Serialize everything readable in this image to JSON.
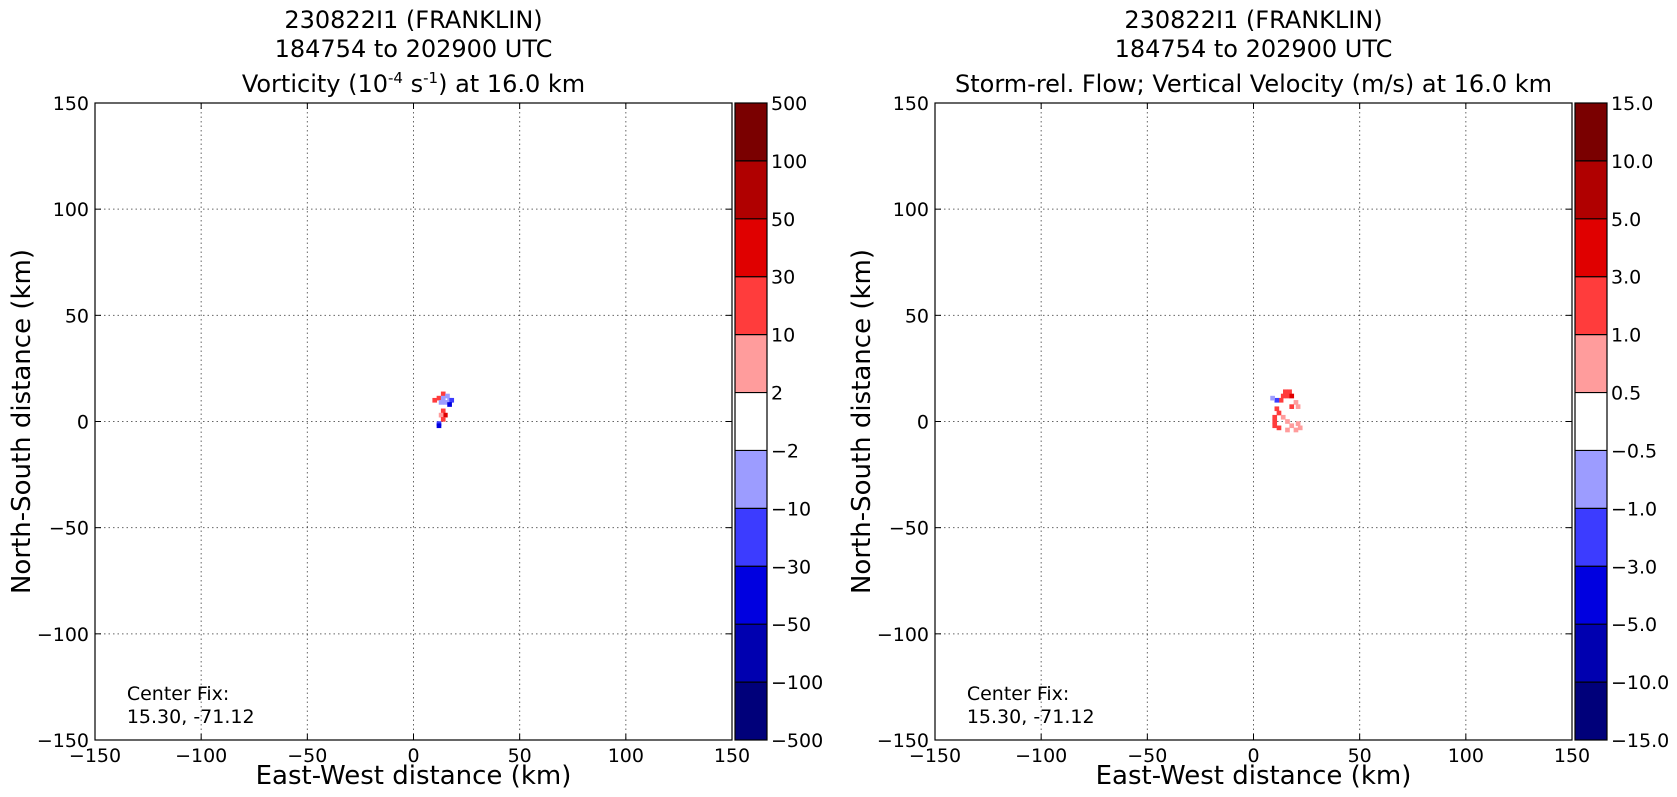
{
  "chart_data": [
    {
      "type": "heatmap",
      "title_lines": [
        "230822I1 (FRANKLIN)",
        "184754 to 202900 UTC"
      ],
      "title_line3": {
        "prefix": "Vorticity (10",
        "sup1": "-4",
        "middle": " s",
        "sup2": "-1",
        "suffix": ") at 16.0 km"
      },
      "xlabel": "East-West distance (km)",
      "ylabel": "North-South distance (km)",
      "xlim": [
        -150,
        150
      ],
      "ylim": [
        -150,
        150
      ],
      "xticks": [
        -150,
        -100,
        -50,
        0,
        50,
        100,
        150
      ],
      "yticks": [
        -150,
        -100,
        -50,
        0,
        50,
        100,
        150
      ],
      "grid": true,
      "colorbar": {
        "labels": [
          "500",
          "100",
          "50",
          "30",
          "10",
          "2",
          "−2",
          "−10",
          "−30",
          "−50",
          "−100",
          "−500"
        ],
        "colors": [
          "#7a0000",
          "#b00000",
          "#e00000",
          "#ff3c3c",
          "#ff9c9c",
          "#ffffff",
          "#9c9cff",
          "#3c3cff",
          "#0000e0",
          "#0000b0",
          "#00007a"
        ]
      },
      "annotation": [
        "Center Fix:",
        "15.30, -71.12"
      ],
      "cells": [
        {
          "x": 12,
          "y": 11,
          "c": "#ff3c3c"
        },
        {
          "x": 14,
          "y": 13,
          "c": "#ff3c3c"
        },
        {
          "x": 10,
          "y": 10,
          "c": "#ff3c3c"
        },
        {
          "x": 14,
          "y": 11,
          "c": "#9c9cff"
        },
        {
          "x": 16,
          "y": 12,
          "c": "#9c9cff"
        },
        {
          "x": 15,
          "y": 9,
          "c": "#9c9cff"
        },
        {
          "x": 13,
          "y": 9,
          "c": "#9c9cff"
        },
        {
          "x": 17,
          "y": 10,
          "c": "#9c9cff"
        },
        {
          "x": 18,
          "y": 10,
          "c": "#3c3cff"
        },
        {
          "x": 17,
          "y": 8,
          "c": "#0000e0"
        },
        {
          "x": 14,
          "y": 5,
          "c": "#ff3c3c"
        },
        {
          "x": 15,
          "y": 3,
          "c": "#e00000"
        },
        {
          "x": 13,
          "y": 3,
          "c": "#ff9c9c"
        },
        {
          "x": 14,
          "y": 1,
          "c": "#ff3c3c"
        },
        {
          "x": 12,
          "y": -1,
          "c": "#3c3cff"
        },
        {
          "x": 12,
          "y": -2,
          "c": "#0000e0"
        }
      ]
    },
    {
      "type": "heatmap",
      "title_lines": [
        "230822I1 (FRANKLIN)",
        "184754 to 202900 UTC"
      ],
      "title_line3": {
        "prefix": "Storm-rel. Flow; Vertical Velocity (m/s) at 16.0 km",
        "sup1": "",
        "middle": "",
        "sup2": "",
        "suffix": ""
      },
      "xlabel": "East-West distance (km)",
      "ylabel": "North-South distance (km)",
      "xlim": [
        -150,
        150
      ],
      "ylim": [
        -150,
        150
      ],
      "xticks": [
        -150,
        -100,
        -50,
        0,
        50,
        100,
        150
      ],
      "yticks": [
        -150,
        -100,
        -50,
        0,
        50,
        100,
        150
      ],
      "grid": true,
      "colorbar": {
        "labels": [
          "15.0",
          "10.0",
          "5.0",
          "3.0",
          "1.0",
          "0.5",
          "−0.5",
          "−1.0",
          "−3.0",
          "−5.0",
          "−10.0",
          "−15.0"
        ],
        "colors": [
          "#7a0000",
          "#b00000",
          "#e00000",
          "#ff3c3c",
          "#ff9c9c",
          "#ffffff",
          "#9c9cff",
          "#3c3cff",
          "#0000e0",
          "#0000b0",
          "#00007a"
        ]
      },
      "annotation": [
        "Center Fix:",
        "15.30, -71.12"
      ],
      "cells": [
        {
          "x": 15,
          "y": 14,
          "c": "#ff3c3c"
        },
        {
          "x": 17,
          "y": 14,
          "c": "#ff3c3c"
        },
        {
          "x": 16,
          "y": 12,
          "c": "#ff3c3c"
        },
        {
          "x": 18,
          "y": 12,
          "c": "#e00000"
        },
        {
          "x": 14,
          "y": 12,
          "c": "#ff3c3c"
        },
        {
          "x": 13,
          "y": 10,
          "c": "#ff3c3c"
        },
        {
          "x": 11,
          "y": 10,
          "c": "#3c3cff"
        },
        {
          "x": 9,
          "y": 11,
          "c": "#9c9cff"
        },
        {
          "x": 20,
          "y": 9,
          "c": "#ff9c9c"
        },
        {
          "x": 21,
          "y": 7,
          "c": "#ff9c9c"
        },
        {
          "x": 18,
          "y": 7,
          "c": "#ff3c3c"
        },
        {
          "x": 11,
          "y": 6,
          "c": "#ff3c3c"
        },
        {
          "x": 12,
          "y": 4,
          "c": "#ff3c3c"
        },
        {
          "x": 10,
          "y": 2,
          "c": "#ff3c3c"
        },
        {
          "x": 10,
          "y": 0,
          "c": "#ff3c3c"
        },
        {
          "x": 10,
          "y": -2,
          "c": "#ff3c3c"
        },
        {
          "x": 12,
          "y": -3,
          "c": "#ff3c3c"
        },
        {
          "x": 14,
          "y": 2,
          "c": "#ff9c9c"
        },
        {
          "x": 16,
          "y": 0,
          "c": "#ff9c9c"
        },
        {
          "x": 18,
          "y": -2,
          "c": "#ff9c9c"
        },
        {
          "x": 20,
          "y": -4,
          "c": "#ff9c9c"
        },
        {
          "x": 22,
          "y": -3,
          "c": "#ff9c9c"
        },
        {
          "x": 21,
          "y": -1,
          "c": "#ff9c9c"
        },
        {
          "x": 16,
          "y": -4,
          "c": "#ff9c9c"
        }
      ]
    }
  ]
}
